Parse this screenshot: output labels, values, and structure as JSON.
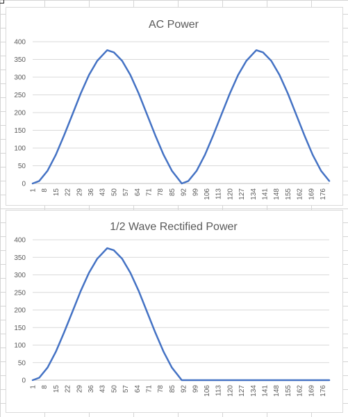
{
  "sheet": {
    "gridline_color": "#d4d4d4"
  },
  "chart_data": [
    {
      "type": "line",
      "title": "AC Power",
      "xlabel": "",
      "ylabel": "",
      "ylim": [
        0,
        400
      ],
      "yticks": [
        0,
        50,
        100,
        150,
        200,
        250,
        300,
        350,
        400
      ],
      "x_tick_labels": [
        "1",
        "8",
        "15",
        "22",
        "29",
        "36",
        "43",
        "50",
        "57",
        "64",
        "71",
        "78",
        "85",
        "92",
        "99",
        "106",
        "113",
        "120",
        "127",
        "134",
        "141",
        "148",
        "155",
        "162",
        "169",
        "176"
      ],
      "x_range": [
        1,
        180
      ],
      "grid": true,
      "legend": "none",
      "series_color": "#4472c4",
      "series": [
        {
          "formula": "376 * sin^2(pi*(x-1)/90)",
          "x": [
            1,
            5,
            10,
            15,
            20,
            25,
            30,
            35,
            40,
            46,
            50,
            55,
            60,
            65,
            70,
            75,
            80,
            85,
            91,
            95,
            100,
            105,
            110,
            115,
            120,
            125,
            130,
            136,
            140,
            145,
            150,
            155,
            160,
            165,
            170,
            175,
            180
          ],
          "values": [
            0,
            7,
            36,
            81,
            136,
            195,
            254,
            306,
            346,
            376,
            370,
            346,
            306,
            254,
            195,
            136,
            81,
            36,
            0,
            7,
            36,
            81,
            136,
            195,
            254,
            306,
            346,
            376,
            370,
            346,
            306,
            254,
            195,
            136,
            81,
            36,
            7
          ]
        }
      ]
    },
    {
      "type": "line",
      "title": "1/2 Wave Rectified Power",
      "xlabel": "",
      "ylabel": "",
      "ylim": [
        0,
        400
      ],
      "yticks": [
        0,
        50,
        100,
        150,
        200,
        250,
        300,
        350,
        400
      ],
      "x_tick_labels": [
        "1",
        "8",
        "15",
        "22",
        "29",
        "36",
        "43",
        "50",
        "57",
        "64",
        "71",
        "78",
        "85",
        "92",
        "99",
        "106",
        "113",
        "120",
        "127",
        "134",
        "141",
        "148",
        "155",
        "162",
        "169",
        "176"
      ],
      "x_range": [
        1,
        180
      ],
      "grid": true,
      "legend": "none",
      "series_color": "#4472c4",
      "series": [
        {
          "formula": "376 * sin^2(pi*(x-1)/90) for x<=91, else 0",
          "x": [
            1,
            5,
            10,
            15,
            20,
            25,
            30,
            35,
            40,
            46,
            50,
            55,
            60,
            65,
            70,
            75,
            80,
            85,
            91,
            95,
            100,
            110,
            120,
            130,
            140,
            150,
            160,
            170,
            180
          ],
          "values": [
            0,
            7,
            36,
            81,
            136,
            195,
            254,
            306,
            346,
            376,
            370,
            346,
            306,
            254,
            195,
            136,
            81,
            36,
            0,
            0,
            0,
            0,
            0,
            0,
            0,
            0,
            0,
            0,
            0
          ]
        }
      ]
    }
  ]
}
